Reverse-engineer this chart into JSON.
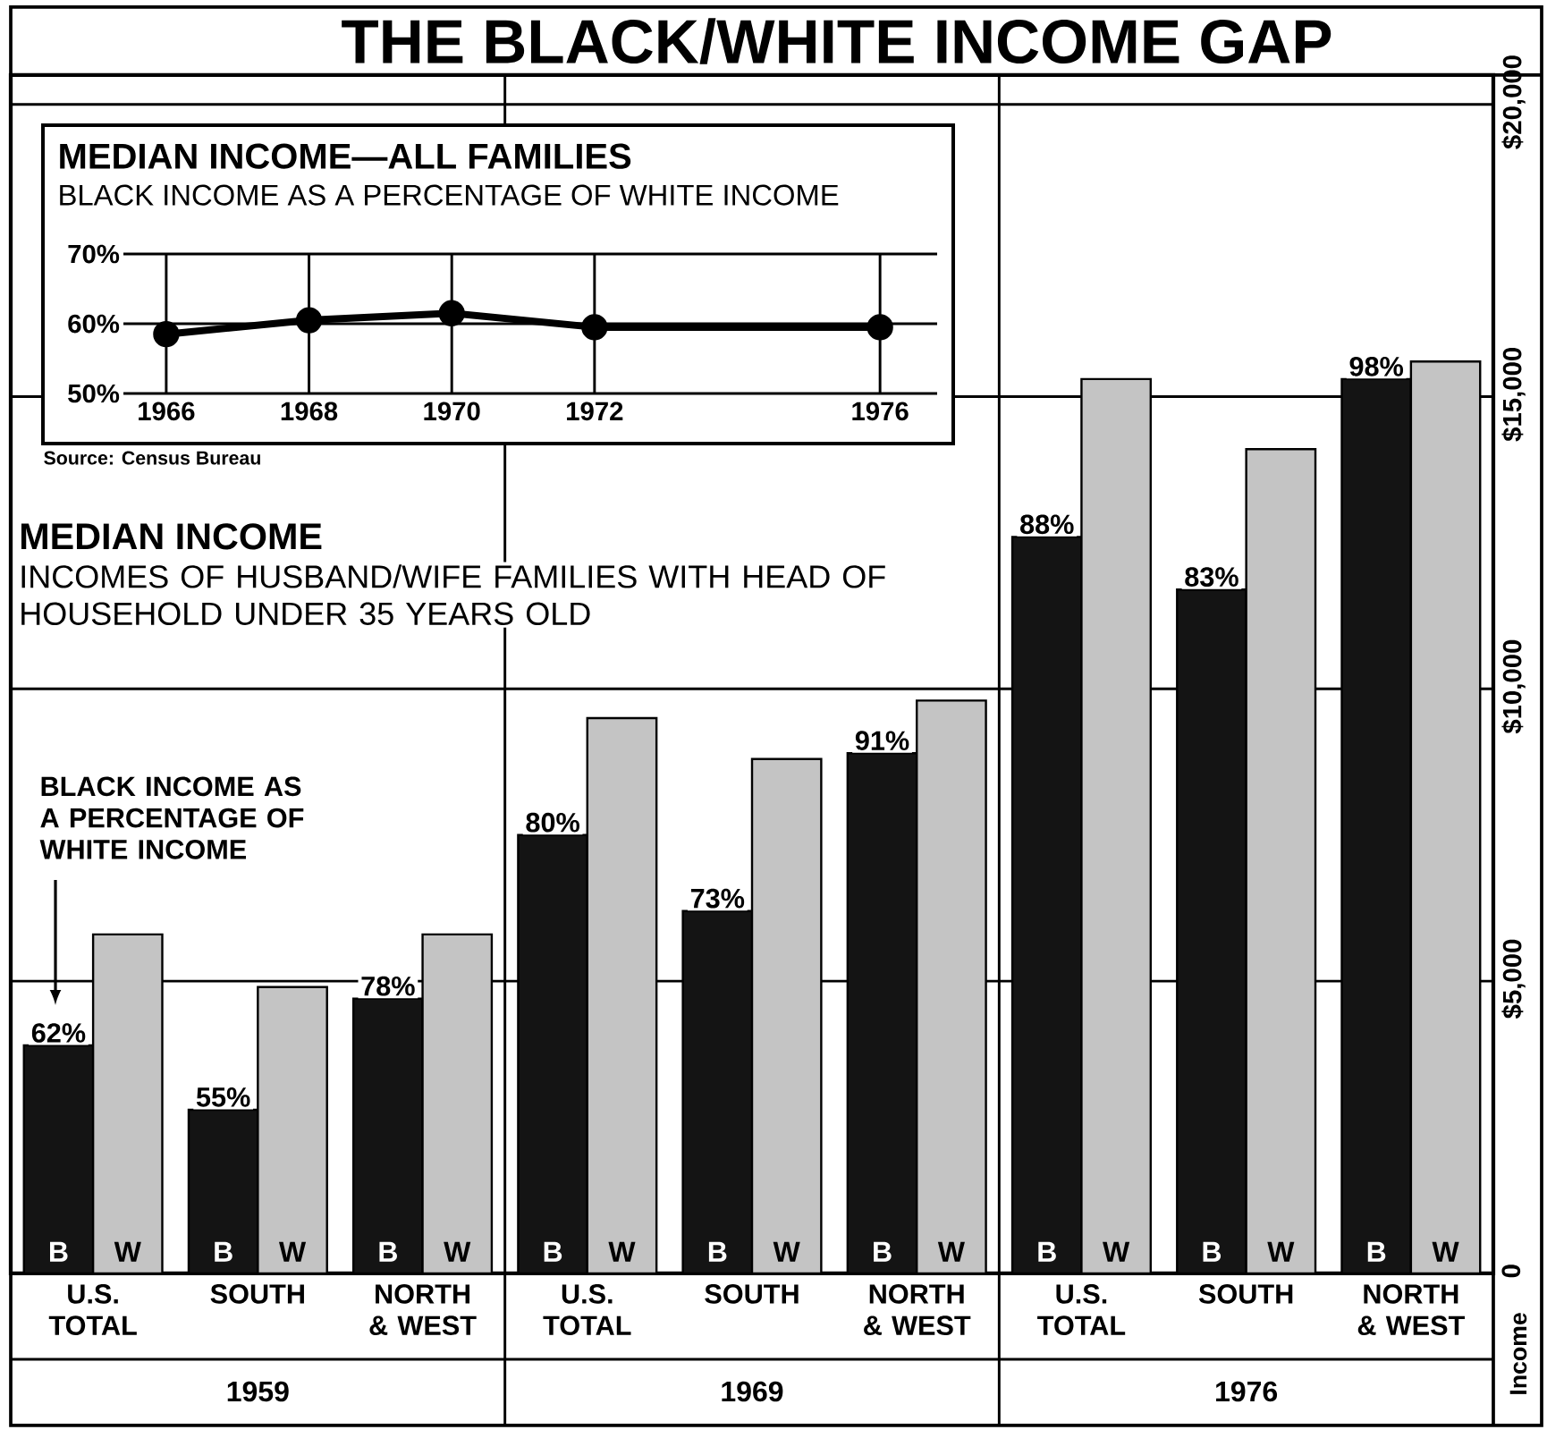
{
  "chart_data": [
    {
      "type": "bar",
      "title": "THE BLACK/WHITE INCOME GAP",
      "subtitle": "MEDIAN INCOME",
      "annotations": [
        "INCOMES OF HUSBAND/WIFE FAMILIES WITH HEAD OF HOUSEHOLD UNDER 35 YEARS OLD",
        "BLACK INCOME AS A PERCENTAGE OF WHITE INCOME",
        "1959",
        "1969",
        "1976",
        "62%",
        "55%",
        "78%",
        "80%",
        "73%",
        "91%",
        "88%",
        "83%",
        "98%"
      ],
      "categories": [
        "U.S. TOTAL",
        "SOUTH",
        "NORTH & WEST",
        "U.S. TOTAL",
        "SOUTH",
        "NORTH & WEST",
        "U.S. TOTAL",
        "SOUTH",
        "NORTH & WEST"
      ],
      "series": [
        {
          "name": "B",
          "color": "#141414",
          "values": [
            3900,
            2800,
            4700,
            7500,
            6200,
            8900,
            12600,
            11700,
            15300
          ]
        },
        {
          "name": "W",
          "color": "#c4c4c4",
          "values": [
            5800,
            4900,
            5800,
            9500,
            8800,
            9800,
            15300,
            14100,
            15600
          ]
        }
      ],
      "ylabel": "Income",
      "ylim": [
        0,
        20500
      ],
      "yticks": [
        0,
        {
          "value": 5000,
          "label": "$5,000"
        },
        {
          "value": 10000,
          "label": "$10,000"
        },
        {
          "value": 15000,
          "label": "$15,000"
        },
        {
          "value": 20000,
          "label": "$20,000"
        }
      ],
      "grid": "y"
    },
    {
      "type": "line",
      "title": "MEDIAN INCOME—ALL FAMILIES",
      "subtitle": "BLACK INCOME AS A PERCENTAGE OF WHITE INCOME",
      "annotations": [
        "Source: Census Bureau"
      ],
      "x": [
        1966,
        1968,
        1970,
        1972,
        1976
      ],
      "values": [
        58.5,
        60.5,
        61.5,
        59.5,
        59.5
      ],
      "color": "#000000",
      "xlim": [
        1965.4,
        1976.8
      ],
      "xticks": [
        1966,
        1968,
        1970,
        1972,
        1976
      ],
      "ylim": [
        50,
        70
      ],
      "yticks": [
        {
          "value": 50,
          "label": "50%"
        },
        {
          "value": 60,
          "label": "60%"
        },
        {
          "value": 70,
          "label": "70%"
        }
      ],
      "grid": true,
      "marker": "circle",
      "line_style": "solid"
    }
  ]
}
